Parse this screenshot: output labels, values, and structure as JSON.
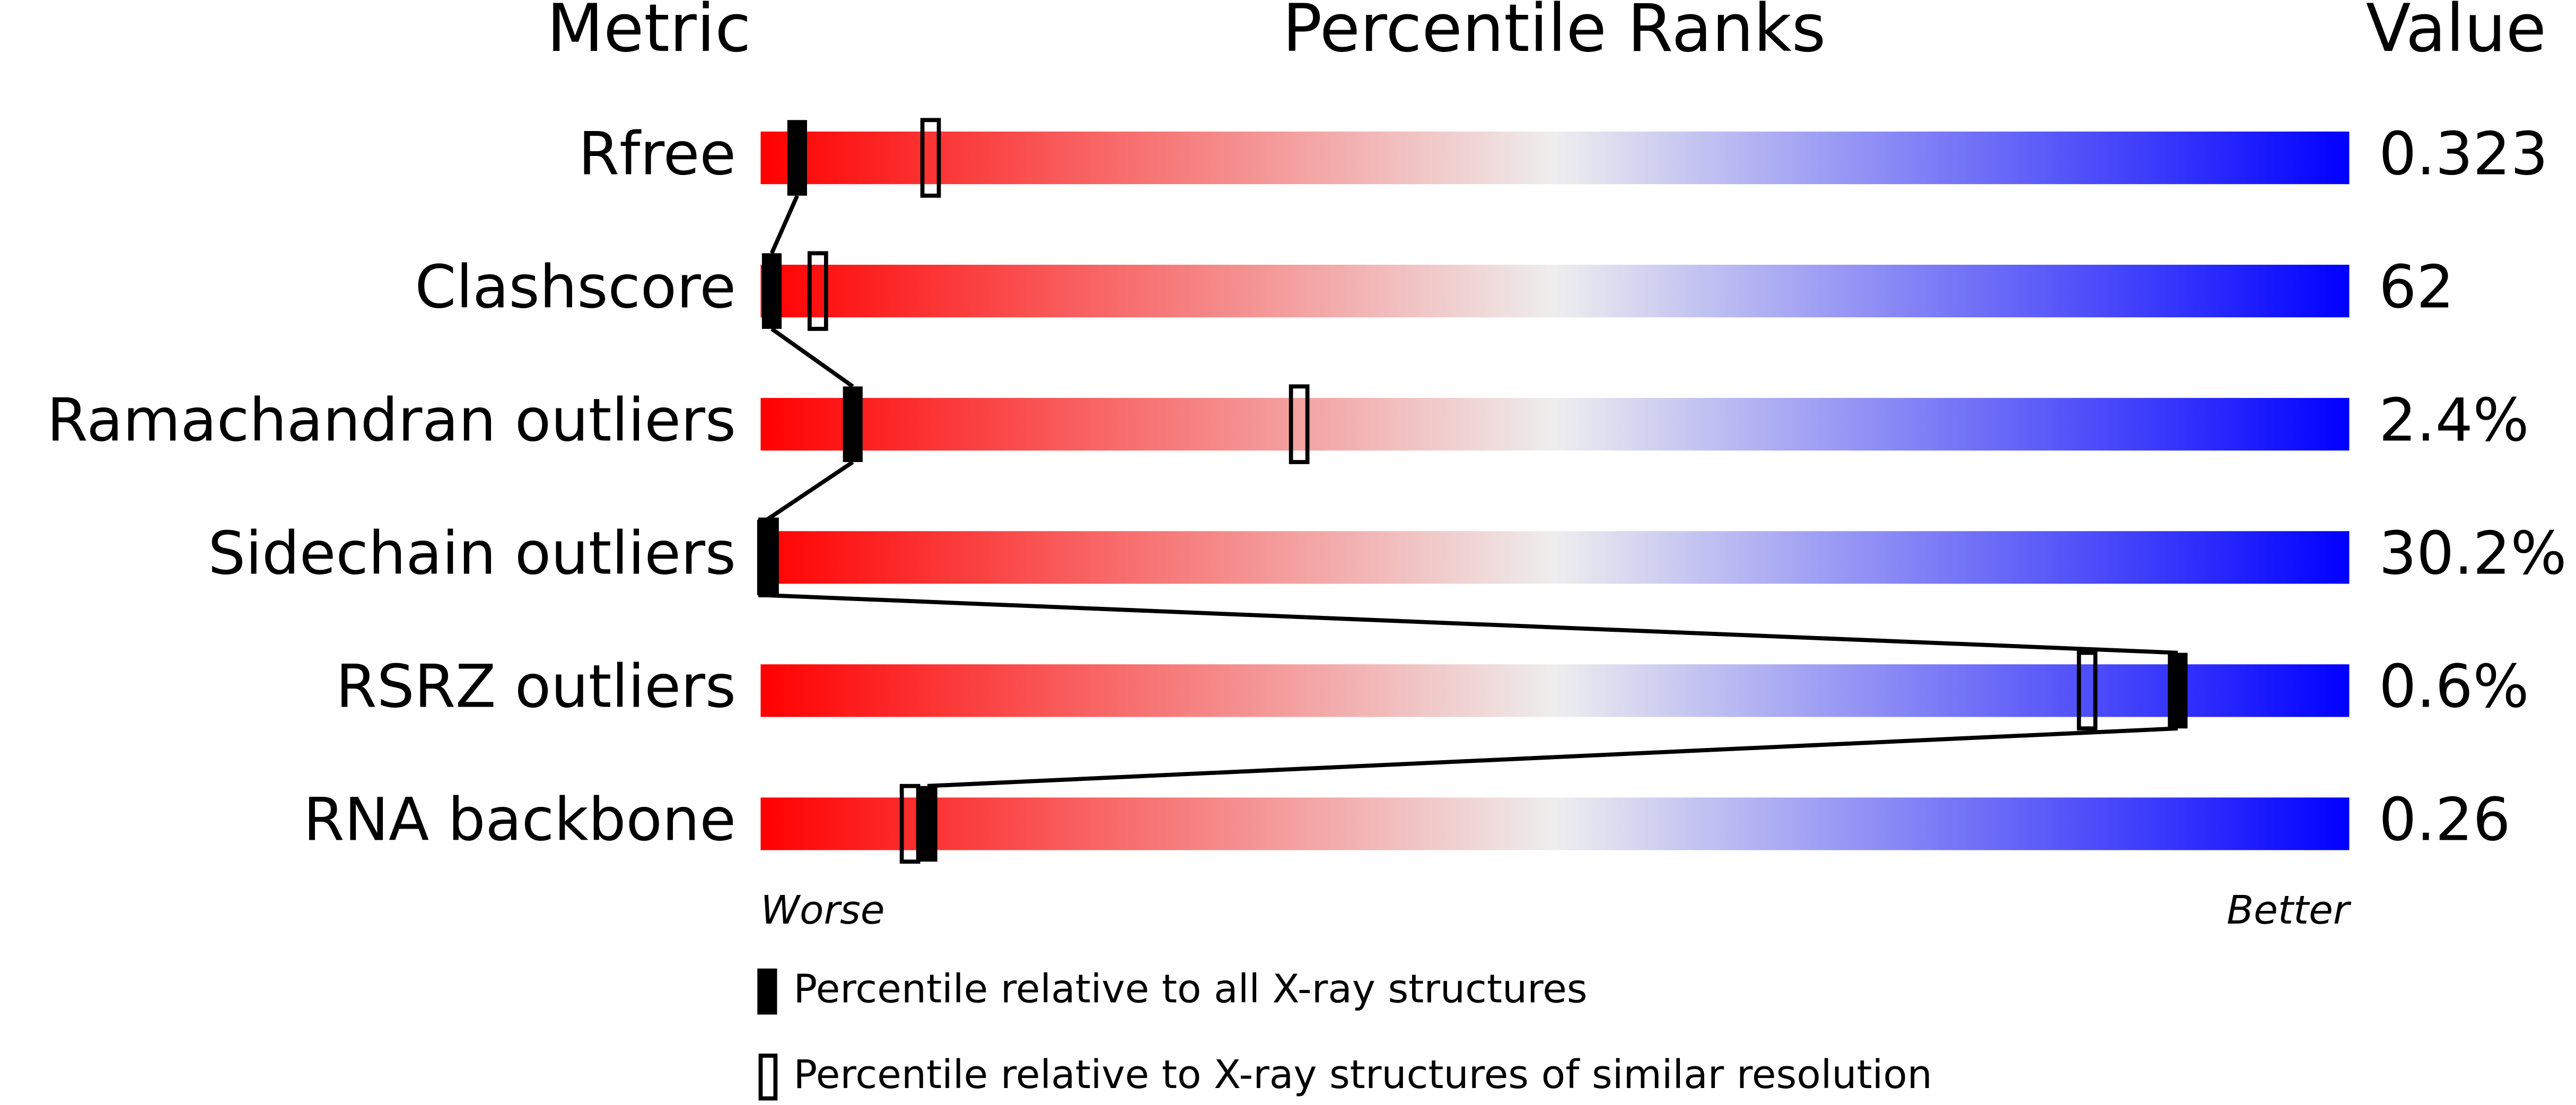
{
  "chart_data": {
    "type": "percentile-slider",
    "headers": [
      "Metric",
      "Percentile Ranks",
      "Value"
    ],
    "categories": [
      "Rfree",
      "Clashscore",
      "Ramachandran outliers",
      "Sidechain outliers",
      "RSRZ outliers",
      "RNA backbone"
    ],
    "metric_values": [
      "0.323",
      "62",
      "2.4%",
      "30.2%",
      "0.6%",
      "0.26"
    ],
    "series": [
      {
        "name": "Percentile relative to all X-ray structures",
        "style": "filled",
        "color": "#000000",
        "values": [
          2.3,
          0.7,
          5.8,
          0.4,
          89.2,
          10.5
        ]
      },
      {
        "name": "Percentile relative to X-ray structures of similar resolution",
        "style": "open",
        "color": "#000000",
        "values": [
          10.7,
          3.6,
          33.9,
          0.5,
          83.5,
          9.4
        ]
      }
    ],
    "xlim": [
      0,
      100
    ],
    "scale_labels": [
      "Worse",
      "Better"
    ],
    "gradient": [
      "#ff0000",
      "#eeeeee",
      "#0000ff"
    ]
  }
}
